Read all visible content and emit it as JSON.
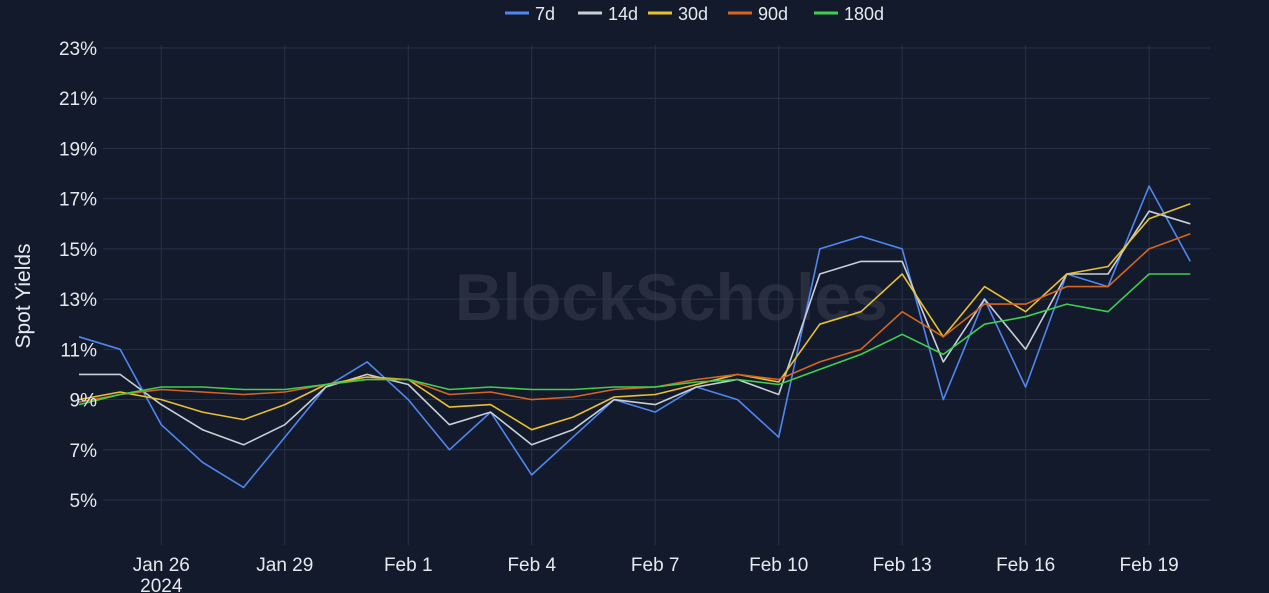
{
  "chart_data": {
    "type": "line",
    "ylabel": "Spot Yields",
    "y_unit": "%",
    "ylim": [
      3.5,
      24
    ],
    "y_ticks": [
      "23%",
      "21%",
      "19%",
      "17%",
      "15%",
      "13%",
      "11%",
      "9%",
      "7%",
      "5%"
    ],
    "y_tick_values": [
      23,
      21,
      19,
      17,
      15,
      13,
      11,
      9,
      7,
      5
    ],
    "x_range": [
      "2024-01-24T14:00",
      "2024-02-20T11:30"
    ],
    "x_ticks": [
      {
        "label": "Jan 26",
        "sub": "2024",
        "date": "2024-01-26"
      },
      {
        "label": "Jan 29",
        "date": "2024-01-29"
      },
      {
        "label": "Feb 1",
        "date": "2024-02-01"
      },
      {
        "label": "Feb 4",
        "date": "2024-02-04"
      },
      {
        "label": "Feb 7",
        "date": "2024-02-07"
      },
      {
        "label": "Feb 10",
        "date": "2024-02-10"
      },
      {
        "label": "Feb 13",
        "date": "2024-02-13"
      },
      {
        "label": "Feb 16",
        "date": "2024-02-16"
      },
      {
        "label": "Feb 19",
        "date": "2024-02-19"
      }
    ],
    "grid": true,
    "legend_position": "top-center",
    "watermark": "BlockScholes",
    "series": [
      {
        "name": "7d",
        "color": "#4f86f0",
        "points": [
          [
            "2024-01-24",
            11.5
          ],
          [
            "2024-01-25",
            11.0
          ],
          [
            "2024-01-26",
            8.0
          ],
          [
            "2024-01-27",
            6.5
          ],
          [
            "2024-01-28",
            5.5
          ],
          [
            "2024-01-29",
            7.5
          ],
          [
            "2024-01-30",
            9.5
          ],
          [
            "2024-01-31",
            10.5
          ],
          [
            "2024-02-01",
            9.0
          ],
          [
            "2024-02-02",
            7.0
          ],
          [
            "2024-02-03",
            8.5
          ],
          [
            "2024-02-04",
            6.0
          ],
          [
            "2024-02-05",
            7.5
          ],
          [
            "2024-02-06",
            9.0
          ],
          [
            "2024-02-07",
            8.5
          ],
          [
            "2024-02-08",
            9.5
          ],
          [
            "2024-02-09",
            9.0
          ],
          [
            "2024-02-10",
            7.5
          ],
          [
            "2024-02-11",
            15.0
          ],
          [
            "2024-02-12",
            15.5
          ],
          [
            "2024-02-13",
            15.0
          ],
          [
            "2024-02-14",
            9.0
          ],
          [
            "2024-02-15",
            13.0
          ],
          [
            "2024-02-16",
            9.5
          ],
          [
            "2024-02-17",
            14.0
          ],
          [
            "2024-02-18",
            13.5
          ],
          [
            "2024-02-19",
            17.5
          ],
          [
            "2024-02-20",
            14.5
          ]
        ]
      },
      {
        "name": "14d",
        "color": "#c9cfd8",
        "points": [
          [
            "2024-01-24",
            10.0
          ],
          [
            "2024-01-25",
            10.0
          ],
          [
            "2024-01-26",
            8.8
          ],
          [
            "2024-01-27",
            7.8
          ],
          [
            "2024-01-28",
            7.2
          ],
          [
            "2024-01-29",
            8.0
          ],
          [
            "2024-01-30",
            9.5
          ],
          [
            "2024-01-31",
            10.0
          ],
          [
            "2024-02-01",
            9.6
          ],
          [
            "2024-02-02",
            8.0
          ],
          [
            "2024-02-03",
            8.5
          ],
          [
            "2024-02-04",
            7.2
          ],
          [
            "2024-02-05",
            7.8
          ],
          [
            "2024-02-06",
            9.0
          ],
          [
            "2024-02-07",
            8.8
          ],
          [
            "2024-02-08",
            9.5
          ],
          [
            "2024-02-09",
            9.8
          ],
          [
            "2024-02-10",
            9.2
          ],
          [
            "2024-02-11",
            14.0
          ],
          [
            "2024-02-12",
            14.5
          ],
          [
            "2024-02-13",
            14.5
          ],
          [
            "2024-02-14",
            10.5
          ],
          [
            "2024-02-15",
            13.0
          ],
          [
            "2024-02-16",
            11.0
          ],
          [
            "2024-02-17",
            14.0
          ],
          [
            "2024-02-18",
            14.0
          ],
          [
            "2024-02-19",
            16.5
          ],
          [
            "2024-02-20",
            16.0
          ]
        ]
      },
      {
        "name": "30d",
        "color": "#e8c030",
        "points": [
          [
            "2024-01-24",
            9.0
          ],
          [
            "2024-01-25",
            9.3
          ],
          [
            "2024-01-26",
            9.0
          ],
          [
            "2024-01-27",
            8.5
          ],
          [
            "2024-01-28",
            8.2
          ],
          [
            "2024-01-29",
            8.8
          ],
          [
            "2024-01-30",
            9.6
          ],
          [
            "2024-01-31",
            9.9
          ],
          [
            "2024-02-01",
            9.8
          ],
          [
            "2024-02-02",
            8.7
          ],
          [
            "2024-02-03",
            8.8
          ],
          [
            "2024-02-04",
            7.8
          ],
          [
            "2024-02-05",
            8.3
          ],
          [
            "2024-02-06",
            9.1
          ],
          [
            "2024-02-07",
            9.2
          ],
          [
            "2024-02-08",
            9.6
          ],
          [
            "2024-02-09",
            10.0
          ],
          [
            "2024-02-10",
            9.7
          ],
          [
            "2024-02-11",
            12.0
          ],
          [
            "2024-02-12",
            12.5
          ],
          [
            "2024-02-13",
            14.0
          ],
          [
            "2024-02-14",
            11.5
          ],
          [
            "2024-02-15",
            13.5
          ],
          [
            "2024-02-16",
            12.5
          ],
          [
            "2024-02-17",
            14.0
          ],
          [
            "2024-02-18",
            14.3
          ],
          [
            "2024-02-19",
            16.2
          ],
          [
            "2024-02-20",
            16.8
          ]
        ]
      },
      {
        "name": "90d",
        "color": "#d6661f",
        "points": [
          [
            "2024-01-24",
            8.9
          ],
          [
            "2024-01-25",
            9.2
          ],
          [
            "2024-01-26",
            9.4
          ],
          [
            "2024-01-27",
            9.3
          ],
          [
            "2024-01-28",
            9.2
          ],
          [
            "2024-01-29",
            9.3
          ],
          [
            "2024-01-30",
            9.6
          ],
          [
            "2024-01-31",
            9.8
          ],
          [
            "2024-02-01",
            9.8
          ],
          [
            "2024-02-02",
            9.2
          ],
          [
            "2024-02-03",
            9.3
          ],
          [
            "2024-02-04",
            9.0
          ],
          [
            "2024-02-05",
            9.1
          ],
          [
            "2024-02-06",
            9.4
          ],
          [
            "2024-02-07",
            9.5
          ],
          [
            "2024-02-08",
            9.8
          ],
          [
            "2024-02-09",
            10.0
          ],
          [
            "2024-02-10",
            9.8
          ],
          [
            "2024-02-11",
            10.5
          ],
          [
            "2024-02-12",
            11.0
          ],
          [
            "2024-02-13",
            12.5
          ],
          [
            "2024-02-14",
            11.5
          ],
          [
            "2024-02-15",
            12.8
          ],
          [
            "2024-02-16",
            12.8
          ],
          [
            "2024-02-17",
            13.5
          ],
          [
            "2024-02-18",
            13.5
          ],
          [
            "2024-02-19",
            15.0
          ],
          [
            "2024-02-20",
            15.6
          ]
        ]
      },
      {
        "name": "180d",
        "color": "#3ecf4f",
        "points": [
          [
            "2024-01-24",
            8.8
          ],
          [
            "2024-01-25",
            9.2
          ],
          [
            "2024-01-26",
            9.5
          ],
          [
            "2024-01-27",
            9.5
          ],
          [
            "2024-01-28",
            9.4
          ],
          [
            "2024-01-29",
            9.4
          ],
          [
            "2024-01-30",
            9.6
          ],
          [
            "2024-01-31",
            9.8
          ],
          [
            "2024-02-01",
            9.8
          ],
          [
            "2024-02-02",
            9.4
          ],
          [
            "2024-02-03",
            9.5
          ],
          [
            "2024-02-04",
            9.4
          ],
          [
            "2024-02-05",
            9.4
          ],
          [
            "2024-02-06",
            9.5
          ],
          [
            "2024-02-07",
            9.5
          ],
          [
            "2024-02-08",
            9.7
          ],
          [
            "2024-02-09",
            9.8
          ],
          [
            "2024-02-10",
            9.6
          ],
          [
            "2024-02-11",
            10.2
          ],
          [
            "2024-02-12",
            10.8
          ],
          [
            "2024-02-13",
            11.6
          ],
          [
            "2024-02-14",
            10.8
          ],
          [
            "2024-02-15",
            12.0
          ],
          [
            "2024-02-16",
            12.3
          ],
          [
            "2024-02-17",
            12.8
          ],
          [
            "2024-02-18",
            12.5
          ],
          [
            "2024-02-19",
            14.0
          ],
          [
            "2024-02-20",
            14.0
          ]
        ]
      }
    ]
  }
}
